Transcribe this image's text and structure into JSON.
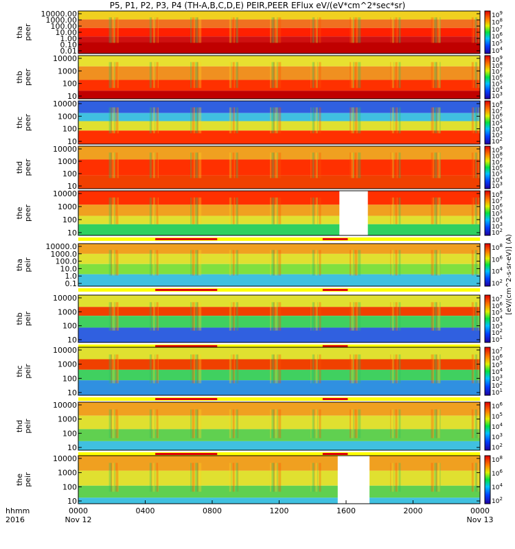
{
  "chart_data": {
    "type": "heatmap",
    "title": "P5, P1, P2, P3, P4 (TH-A,B,C,D,E) PEIR,PEER EFlux eV/(eV*cm^2*sec*sr)",
    "colorbar_label": "[eV/(cm^2-s-sr-eV)] (A)",
    "x_axis": {
      "label_line1": "hhmm",
      "label_line2": "2016",
      "ticks": [
        {
          "label": "0000",
          "hours": 0,
          "date": "Nov 12"
        },
        {
          "label": "0400",
          "hours": 4,
          "date": ""
        },
        {
          "label": "0800",
          "hours": 8,
          "date": ""
        },
        {
          "label": "1200",
          "hours": 12,
          "date": ""
        },
        {
          "label": "1600",
          "hours": 16,
          "date": ""
        },
        {
          "label": "2000",
          "hours": 20,
          "date": ""
        },
        {
          "label": "0000",
          "hours": 24,
          "date": "Nov 13"
        }
      ],
      "range_hours": [
        0,
        24
      ]
    },
    "panels": [
      {
        "label1": "tha",
        "label2": "peer",
        "scale": "log",
        "yticks": [
          "10000.00",
          "1000.00",
          "100.00",
          "10.00",
          "1.00",
          "0.10",
          "0.01"
        ],
        "cbar": [
          "10^9",
          "10^8",
          "10^7",
          "10^6",
          "10^5",
          "10^4"
        ],
        "bands": [
          [
            0,
            1.2,
            "#f0d020"
          ],
          [
            1.2,
            2.4,
            "#f07020"
          ],
          [
            2.4,
            3.6,
            "#ff2000"
          ],
          [
            3.6,
            4.4,
            "#d01010"
          ],
          [
            4.4,
            6,
            "#c00000"
          ]
        ],
        "gaps": [],
        "flag_bar": false
      },
      {
        "label1": "thb",
        "label2": "peer",
        "scale": "log",
        "yticks": [
          "10000",
          "1000",
          "100",
          "10"
        ],
        "cbar": [
          "10^9",
          "10^8",
          "10^7",
          "10^6",
          "10^5",
          "10^4",
          "10^3"
        ],
        "bands": [
          [
            0,
            0.8,
            "#e8e030"
          ],
          [
            0.8,
            1.8,
            "#f09020"
          ],
          [
            1.8,
            2.6,
            "#ff3000"
          ],
          [
            2.6,
            3.2,
            "#c00000"
          ]
        ],
        "gaps": [],
        "flag_bar": false
      },
      {
        "label1": "thc",
        "label2": "peer",
        "scale": "log",
        "yticks": [
          "10000",
          "1000",
          "100",
          "10"
        ],
        "cbar": [
          "10^8",
          "10^7",
          "10^6",
          "10^5",
          "10^4",
          "10^3",
          "10^2"
        ],
        "bands": [
          [
            0,
            0.9,
            "#3060e0"
          ],
          [
            0.9,
            1.5,
            "#40c0e0"
          ],
          [
            1.5,
            2.2,
            "#e0e030"
          ],
          [
            2.2,
            3.2,
            "#ff3000"
          ]
        ],
        "gaps": [],
        "flag_bar": false
      },
      {
        "label1": "thd",
        "label2": "peer",
        "scale": "log",
        "yticks": [
          "10000",
          "1000",
          "100",
          "10"
        ],
        "cbar": [
          "10^9",
          "10^8",
          "10^7",
          "10^6",
          "10^5",
          "10^4",
          "10^3"
        ],
        "bands": [
          [
            0,
            1.0,
            "#f0a020"
          ],
          [
            1.0,
            2.2,
            "#ff3000"
          ],
          [
            2.2,
            3.2,
            "#f04000"
          ]
        ],
        "gaps": [],
        "flag_bar": false
      },
      {
        "label1": "the",
        "label2": "peer",
        "scale": "log",
        "yticks": [
          "10000",
          "1000",
          "100",
          "10"
        ],
        "cbar": [
          "10^8",
          "10^7",
          "10^6",
          "10^5",
          "10^4",
          "10^3",
          "10^2"
        ],
        "bands": [
          [
            0,
            1.0,
            "#ff3000"
          ],
          [
            1.0,
            1.8,
            "#f0a020"
          ],
          [
            1.8,
            2.4,
            "#e0e030"
          ],
          [
            2.4,
            3.2,
            "#30d060"
          ]
        ],
        "gaps": [
          [
            15.6,
            17.3
          ]
        ],
        "flag_bar": true
      },
      {
        "label1": "tha",
        "label2": "peir",
        "scale": "log",
        "yticks": [
          "10000.0",
          "1000.0",
          "100.0",
          "10.0",
          "1.0",
          "0.1"
        ],
        "cbar": [
          "10^8",
          "10^6",
          "10^4",
          "10^2"
        ],
        "bands": [
          [
            0,
            1.2,
            "#f0a020"
          ],
          [
            1.2,
            2.4,
            "#e0e030"
          ],
          [
            2.4,
            3.6,
            "#80e040"
          ],
          [
            3.6,
            5,
            "#40c0e0"
          ]
        ],
        "gaps": [],
        "flag_bar": true
      },
      {
        "label1": "thb",
        "label2": "peir",
        "scale": "log",
        "yticks": [
          "10000",
          "1000",
          "100",
          "10"
        ],
        "cbar": [
          "10^7",
          "10^6",
          "10^5",
          "10^4",
          "10^3",
          "10^2",
          "10^1"
        ],
        "bands": [
          [
            0,
            0.8,
            "#e0e030"
          ],
          [
            0.8,
            1.4,
            "#f04000"
          ],
          [
            1.4,
            2.2,
            "#40d060"
          ],
          [
            2.2,
            3.2,
            "#3060e0"
          ]
        ],
        "gaps": [],
        "flag_bar": true
      },
      {
        "label1": "thc",
        "label2": "peir",
        "scale": "log",
        "yticks": [
          "10000",
          "1000",
          "100",
          "10"
        ],
        "cbar": [
          "10^7",
          "10^6",
          "10^5",
          "10^4",
          "10^3",
          "10^2",
          "10^1"
        ],
        "bands": [
          [
            0,
            0.8,
            "#e0e030"
          ],
          [
            0.8,
            1.5,
            "#f04000"
          ],
          [
            1.5,
            2.2,
            "#40d060"
          ],
          [
            2.2,
            3.2,
            "#3090e0"
          ]
        ],
        "gaps": [],
        "flag_bar": true
      },
      {
        "label1": "thd",
        "label2": "peir",
        "scale": "log",
        "yticks": [
          "10000",
          "1000",
          "100",
          "10"
        ],
        "cbar": [
          "10^6",
          "10^5",
          "10^4",
          "10^3",
          "10^2"
        ],
        "bands": [
          [
            0,
            0.9,
            "#f0a020"
          ],
          [
            0.9,
            1.8,
            "#e0e030"
          ],
          [
            1.8,
            2.6,
            "#60d050"
          ],
          [
            2.6,
            3.2,
            "#40c0e0"
          ]
        ],
        "gaps": [],
        "flag_bar": true
      },
      {
        "label1": "the",
        "label2": "peir",
        "scale": "log",
        "yticks": [
          "10000",
          "1000",
          "100",
          "10"
        ],
        "cbar": [
          "10^8",
          "10^6",
          "10^4",
          "10^2"
        ],
        "bands": [
          [
            0,
            1.0,
            "#f0a020"
          ],
          [
            1.0,
            2.0,
            "#e0e030"
          ],
          [
            2.0,
            2.8,
            "#60d050"
          ],
          [
            2.8,
            3.2,
            "#40c0e0"
          ]
        ],
        "gaps": [
          [
            15.5,
            17.4
          ]
        ],
        "flag_bar": false
      }
    ],
    "flag_colors": {
      "on": "#e00000",
      "off": "#ffff00"
    },
    "colors": {
      "background": "#ffffff",
      "gap": "#ffffff",
      "low": "#000000"
    }
  }
}
